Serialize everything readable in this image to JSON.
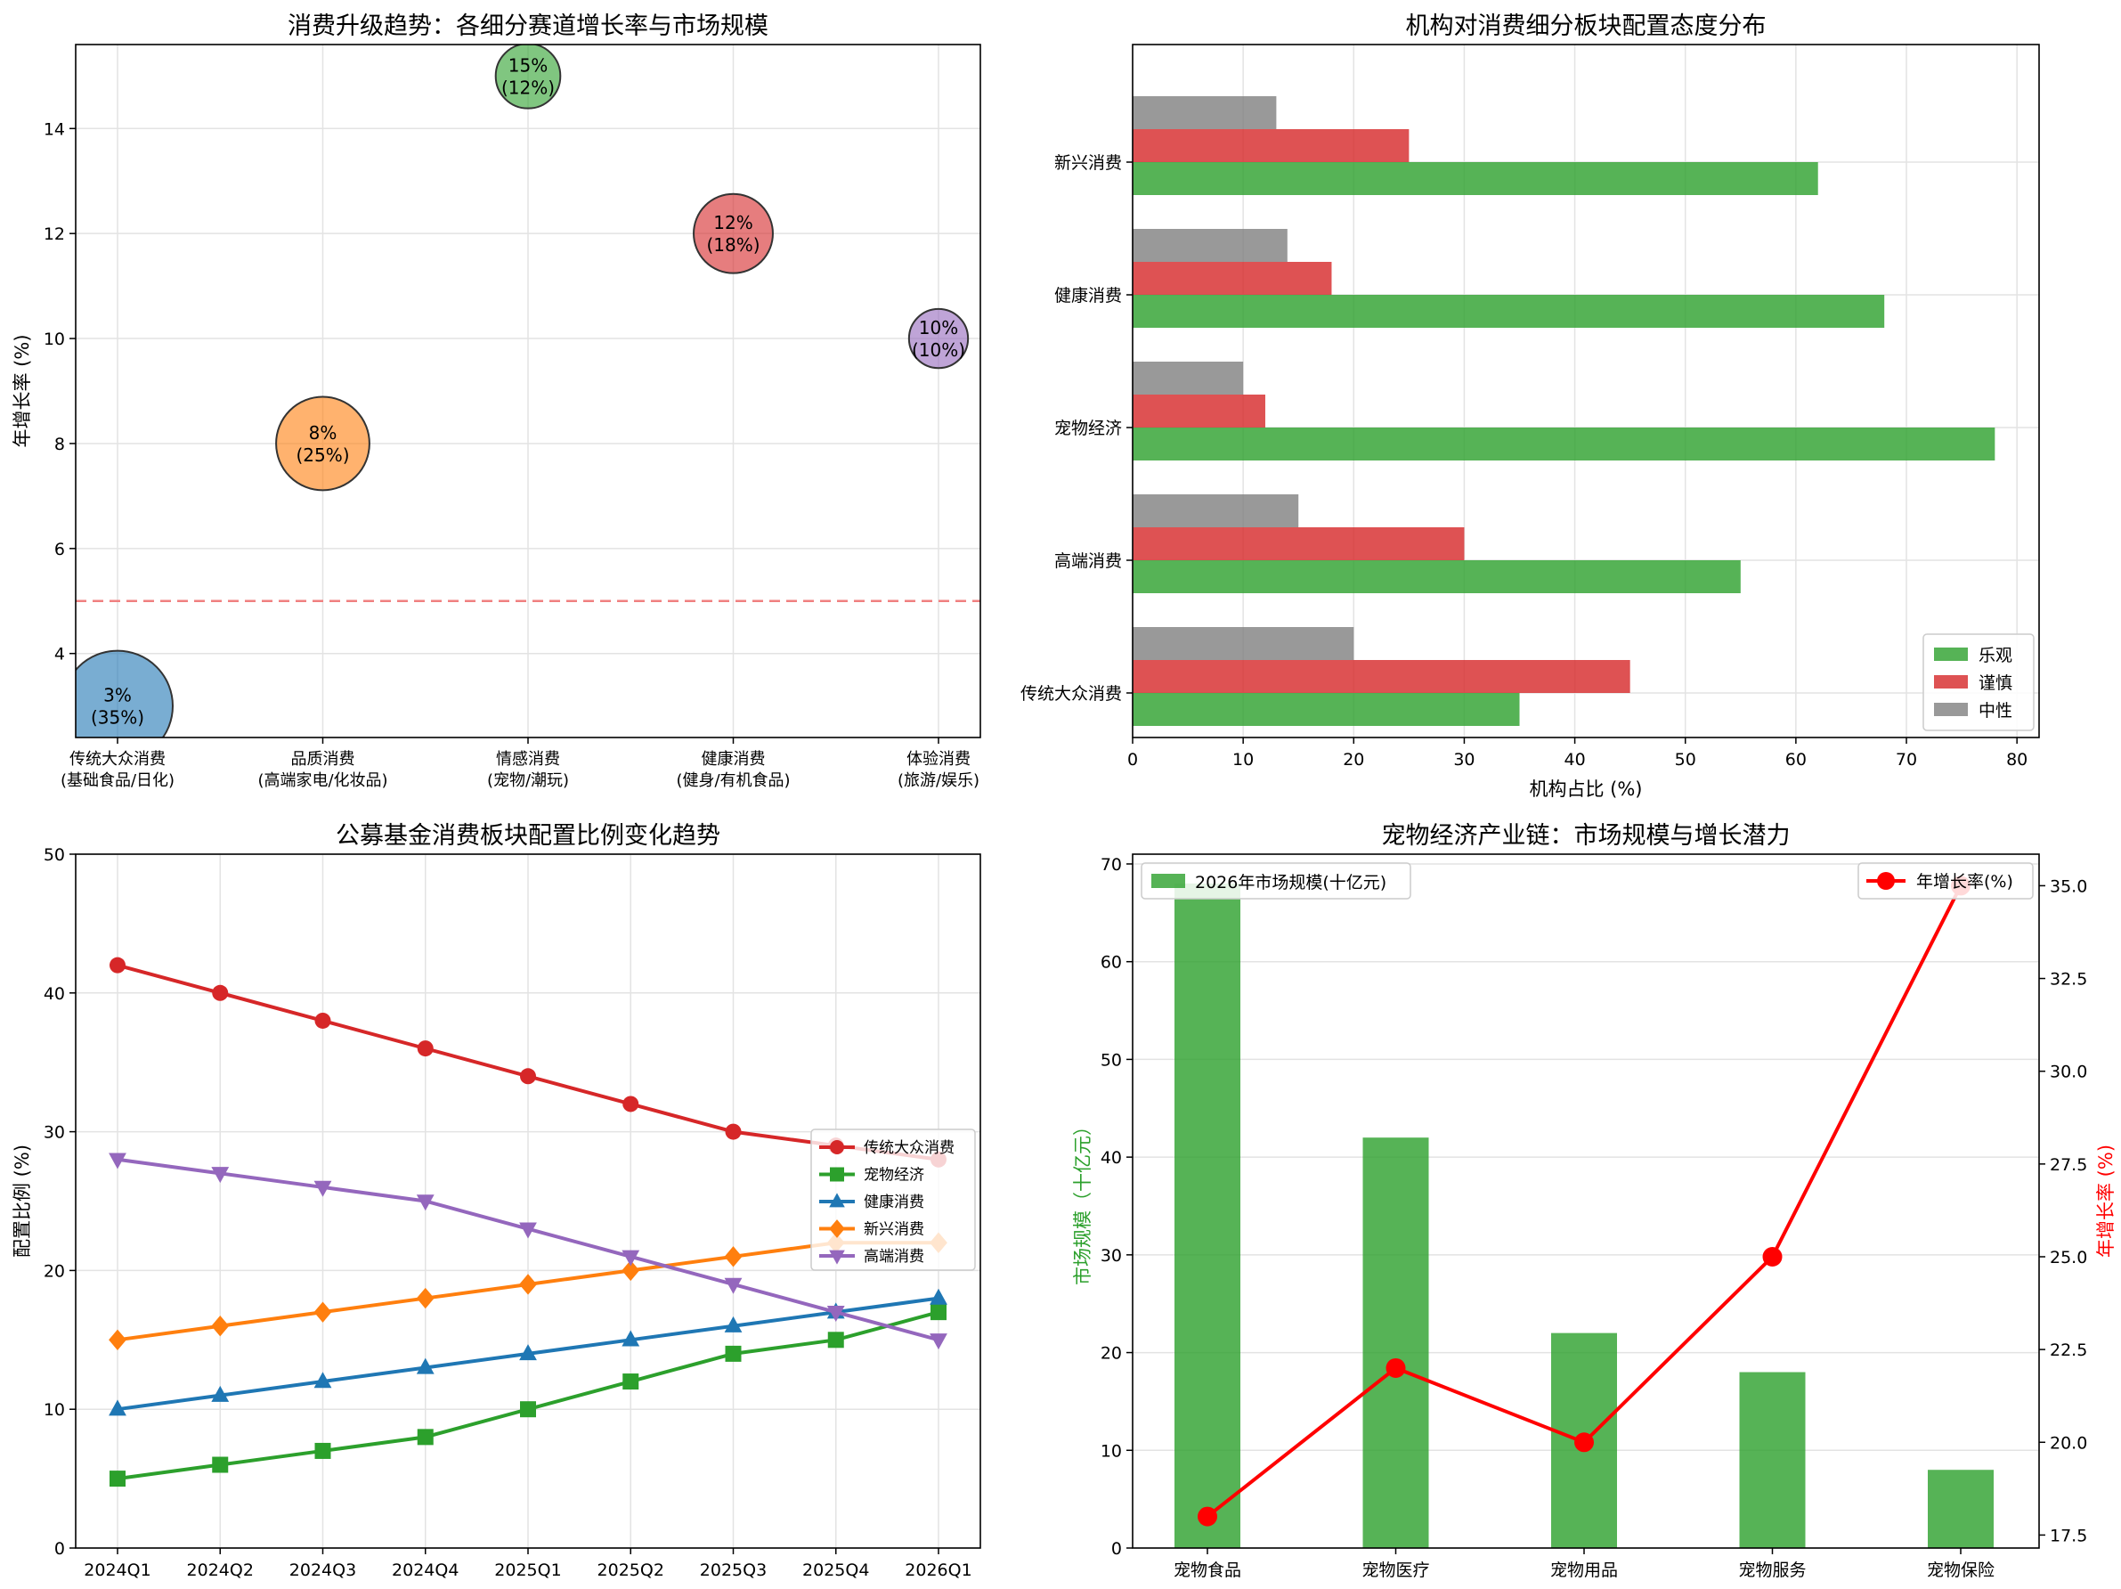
{
  "chart_data": [
    {
      "type": "scatter",
      "title": "消费升级趋势：各细分赛道增长率与市场规模",
      "xlabel": "",
      "ylabel": "年增长率 (%)",
      "ylim": [
        2.4,
        15.6
      ],
      "yticks": [
        4,
        6,
        8,
        10,
        12,
        14
      ],
      "categories": [
        "传统大众消费\n(基础食品/日化)",
        "品质消费\n(高端家电/化妆品)",
        "情感消费\n(宠物/潮玩)",
        "健康消费\n(健身/有机食品)",
        "体验消费\n(旅游/娱乐)"
      ],
      "growth": [
        3,
        8,
        15,
        12,
        10
      ],
      "share": [
        35,
        25,
        12,
        18,
        10
      ],
      "point_labels": [
        "3%\n(35%)",
        "8%\n(25%)",
        "15%\n(12%)",
        "12%\n(18%)",
        "10%\n(10%)"
      ],
      "colors": [
        "#1f77b4",
        "#ff7f0e",
        "#2ca02c",
        "#d62728",
        "#9467bd"
      ],
      "reference_line": 5,
      "grid": true
    },
    {
      "type": "bar",
      "orientation": "horizontal",
      "title": "机构对消费细分板块配置态度分布",
      "xlabel": "机构占比 (%)",
      "ylabel": "",
      "xlim": [
        0,
        82
      ],
      "xticks": [
        0,
        10,
        20,
        30,
        40,
        50,
        60,
        70,
        80
      ],
      "categories": [
        "传统大众消费",
        "高端消费",
        "宠物经济",
        "健康消费",
        "新兴消费"
      ],
      "series": [
        {
          "name": "乐观",
          "values": [
            35,
            55,
            78,
            68,
            62
          ],
          "color": "#2ca02c"
        },
        {
          "name": "谨慎",
          "values": [
            45,
            30,
            12,
            18,
            25
          ],
          "color": "#d62728"
        },
        {
          "name": "中性",
          "values": [
            20,
            15,
            10,
            14,
            13
          ],
          "color": "#7f7f7f"
        }
      ],
      "legend": "lower-right",
      "grid": true
    },
    {
      "type": "line",
      "title": "公募基金消费板块配置比例变化趋势",
      "xlabel": "",
      "ylabel": "配置比例 (%)",
      "ylim": [
        0,
        50
      ],
      "yticks": [
        0,
        10,
        20,
        30,
        40,
        50
      ],
      "x": [
        "2024Q1",
        "2024Q2",
        "2024Q3",
        "2024Q4",
        "2025Q1",
        "2025Q2",
        "2025Q3",
        "2025Q4",
        "2026Q1"
      ],
      "series": [
        {
          "name": "传统大众消费",
          "values": [
            42,
            40,
            38,
            36,
            34,
            32,
            30,
            29,
            28
          ],
          "color": "#d62728",
          "marker": "circle"
        },
        {
          "name": "宠物经济",
          "values": [
            5,
            6,
            7,
            8,
            10,
            12,
            14,
            15,
            17
          ],
          "color": "#2ca02c",
          "marker": "square"
        },
        {
          "name": "健康消费",
          "values": [
            10,
            11,
            12,
            13,
            14,
            15,
            16,
            17,
            18
          ],
          "color": "#1f77b4",
          "marker": "triangle-up"
        },
        {
          "name": "新兴消费",
          "values": [
            15,
            16,
            17,
            18,
            19,
            20,
            21,
            22,
            22
          ],
          "color": "#ff7f0e",
          "marker": "diamond"
        },
        {
          "name": "高端消费",
          "values": [
            28,
            27,
            26,
            25,
            23,
            21,
            19,
            17,
            15
          ],
          "color": "#9467bd",
          "marker": "triangle-down"
        }
      ],
      "legend": "center-right",
      "grid": true
    },
    {
      "type": "bar",
      "title": "宠物经济产业链：市场规模与增长潜力",
      "xlabel": "",
      "ylabel": "市场规模（十亿元）",
      "ylabel_right": "年增长率 (%)",
      "categories": [
        "宠物食品",
        "宠物医疗",
        "宠物用品",
        "宠物服务",
        "宠物保险"
      ],
      "ylim": [
        0,
        71
      ],
      "yticks": [
        0,
        10,
        20,
        30,
        40,
        50,
        60,
        70
      ],
      "ylim_right": [
        17.15,
        35.85
      ],
      "yticks_right": [
        17.5,
        20.0,
        22.5,
        25.0,
        27.5,
        30.0,
        32.5,
        35.0
      ],
      "series": [
        {
          "name": "2026年市场规模(十亿元)",
          "values": [
            68,
            42,
            22,
            18,
            8
          ],
          "color": "#2ca02c",
          "axis": "left",
          "kind": "bar"
        },
        {
          "name": "年增长率(%)",
          "values": [
            18,
            22,
            20,
            25,
            35
          ],
          "color": "#ff0000",
          "axis": "right",
          "kind": "line"
        }
      ],
      "legend": [
        "top-left",
        "top-right"
      ],
      "grid": true
    }
  ]
}
